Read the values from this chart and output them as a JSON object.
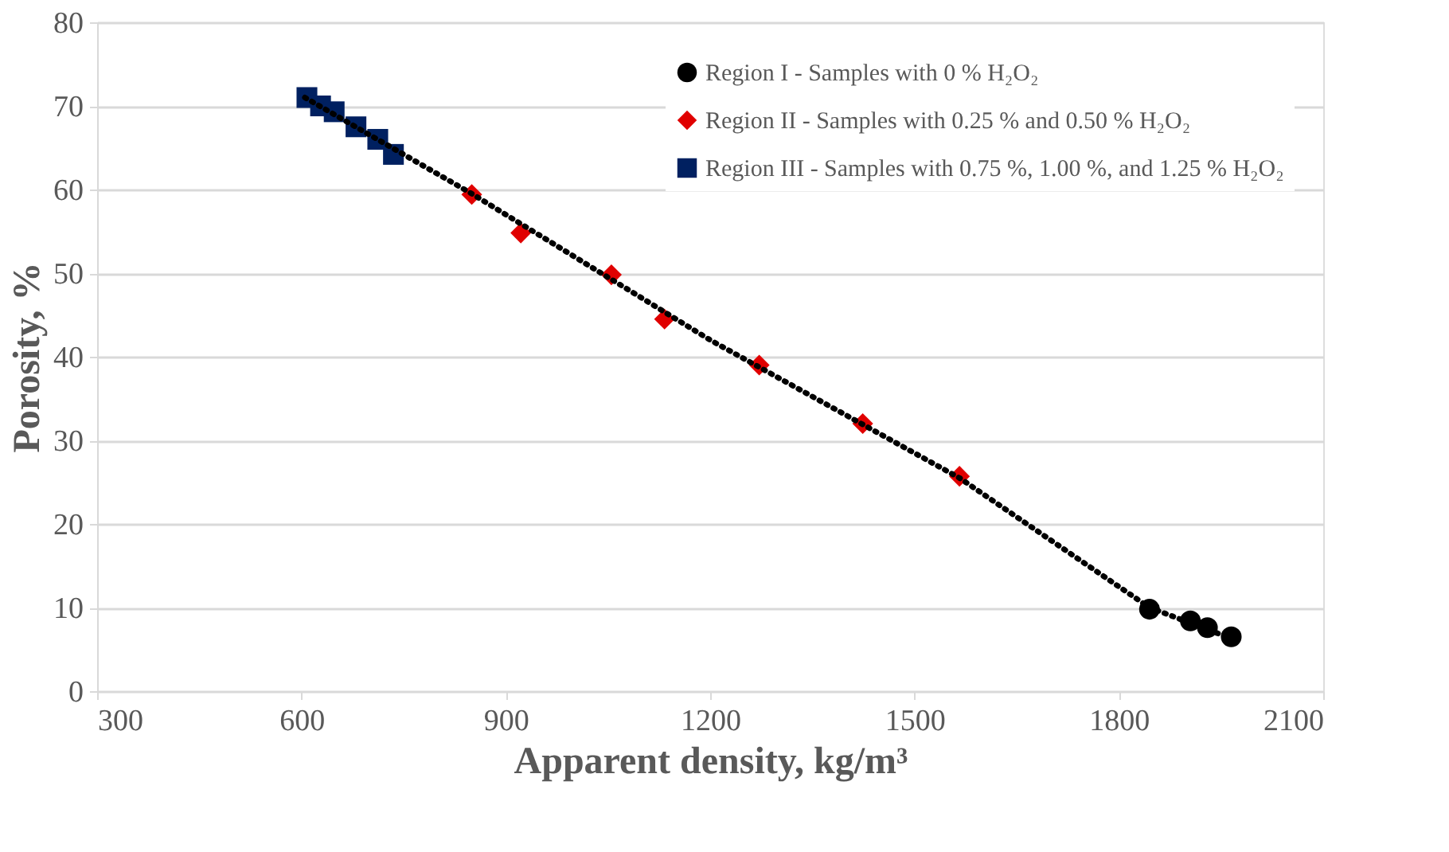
{
  "chart_data": {
    "type": "scatter",
    "xlabel": "Apparent density, kg/m³",
    "ylabel": "Porosity, %",
    "xlim": [
      300,
      2100
    ],
    "xticks": [
      300,
      600,
      900,
      1200,
      1500,
      1800,
      2100
    ],
    "ylim": [
      0,
      80
    ],
    "yticks": [
      0,
      10,
      20,
      30,
      40,
      50,
      60,
      70,
      80
    ],
    "grid": "y",
    "legend": "top right",
    "series": [
      {
        "name": "Region I - Samples with 0 % H₂O₂",
        "color": "#000000",
        "marker": "circle",
        "x": [
          1845,
          1905,
          1930,
          1965
        ],
        "values": [
          9.8,
          8.4,
          7.6,
          6.5
        ]
      },
      {
        "name": "Region II - Samples with 0.25 % and 0.50 % H₂O₂",
        "color": "#e00000",
        "marker": "diamond",
        "x": [
          850,
          922,
          1055,
          1133,
          1272,
          1424,
          1566
        ],
        "values": [
          59.4,
          54.8,
          49.8,
          44.5,
          39.0,
          32.0,
          25.7
        ]
      },
      {
        "name": "Region III - Samples with 0.75 %, 1.00 %, and 1.25 % H₂O₂",
        "color": "#002060",
        "marker": "square",
        "x": [
          608,
          628,
          648,
          680,
          712,
          735
        ],
        "values": [
          71.0,
          70.0,
          69.3,
          67.5,
          66.0,
          64.2
        ]
      },
      {
        "type": "line",
        "color": "#000000",
        "line_style": "dotted",
        "marker": "none",
        "x": [
          605,
          850,
          1200,
          1566,
          1845,
          1965
        ],
        "values": [
          71.0,
          59.5,
          42.0,
          25.5,
          10.0,
          6.3
        ]
      }
    ]
  }
}
